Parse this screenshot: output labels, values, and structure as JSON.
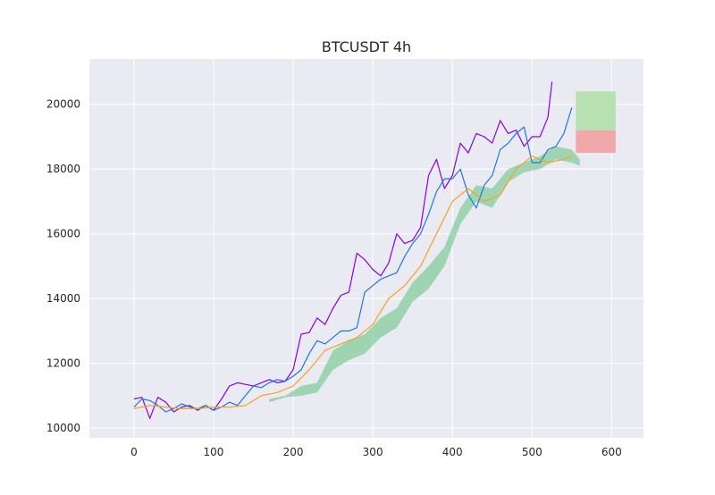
{
  "chart_data": {
    "type": "line",
    "title": "BTCUSDT 4h",
    "xlabel": "",
    "ylabel": "",
    "xlim": [
      -56,
      640
    ],
    "ylim": [
      9700,
      21400
    ],
    "xticks": [
      0,
      100,
      200,
      300,
      400,
      500,
      600
    ],
    "yticks": [
      10000,
      12000,
      14000,
      16000,
      18000,
      20000
    ],
    "grid": true,
    "style": "seaborn-darkgrid",
    "colors": {
      "background": "#eaeaf2",
      "grid": "#ffffff",
      "cloud_bull": "#7ecb96",
      "cloud_bear": "#ee9aa4",
      "candle_up": "#1a8a2a",
      "candle_down": "#cc1f1f",
      "forecast_box_green": "#b7e1b1",
      "forecast_box_red": "#f1a8aa"
    },
    "series": [
      {
        "role": "lagging",
        "color": "#8a00e6",
        "x": [
          0,
          10,
          20,
          30,
          40,
          50,
          60,
          70,
          80,
          90,
          100,
          110,
          120,
          130,
          140,
          150,
          160,
          170,
          180,
          190,
          200,
          210,
          220,
          230,
          240,
          250,
          260,
          270,
          280,
          290,
          300,
          310,
          320,
          330,
          340,
          350,
          360,
          370,
          380,
          390,
          400,
          410,
          420,
          430,
          440,
          450,
          460,
          470,
          480,
          490,
          500,
          510,
          520,
          525
        ],
        "values": [
          10900,
          10950,
          10300,
          10950,
          10800,
          10500,
          10650,
          10700,
          10550,
          10700,
          10550,
          10900,
          11300,
          11400,
          11350,
          11300,
          11400,
          11500,
          11400,
          11450,
          11800,
          12900,
          12950,
          13400,
          13200,
          13700,
          14100,
          14200,
          15400,
          15200,
          14900,
          14700,
          15100,
          16000,
          15700,
          15800,
          16200,
          17800,
          18300,
          17400,
          17800,
          18800,
          18500,
          19100,
          19000,
          18800,
          19500,
          19100,
          19200,
          18700,
          19000,
          19000,
          19600,
          20700
        ]
      },
      {
        "role": "price",
        "color": "#1f77e0",
        "x": [
          0,
          10,
          20,
          30,
          40,
          50,
          60,
          70,
          80,
          90,
          100,
          110,
          120,
          130,
          140,
          150,
          160,
          170,
          180,
          190,
          200,
          210,
          220,
          230,
          240,
          250,
          260,
          270,
          280,
          290,
          300,
          310,
          320,
          330,
          340,
          350,
          360,
          370,
          380,
          390,
          400,
          410,
          420,
          430,
          440,
          450,
          460,
          470,
          480,
          490,
          500,
          510,
          520,
          530,
          540,
          550
        ],
        "values": [
          10650,
          10900,
          10850,
          10700,
          10500,
          10600,
          10750,
          10650,
          10600,
          10700,
          10550,
          10650,
          10800,
          10700,
          11000,
          11300,
          11250,
          11400,
          11500,
          11450,
          11600,
          11800,
          12300,
          12700,
          12600,
          12800,
          13000,
          13000,
          13100,
          14200,
          14400,
          14600,
          14700,
          14800,
          15300,
          15700,
          16000,
          16600,
          17300,
          17700,
          17700,
          18000,
          17200,
          16800,
          17500,
          17800,
          18600,
          18800,
          19100,
          19300,
          18200,
          18200,
          18600,
          18700,
          19100,
          19900
        ]
      },
      {
        "role": "base",
        "color": "#f7a21b",
        "x": [
          0,
          20,
          40,
          60,
          80,
          100,
          120,
          140,
          160,
          180,
          200,
          220,
          240,
          260,
          280,
          300,
          320,
          340,
          360,
          380,
          400,
          420,
          440,
          460,
          480,
          500,
          520,
          540,
          550
        ],
        "values": [
          10600,
          10700,
          10650,
          10600,
          10600,
          10650,
          10650,
          10700,
          11000,
          11100,
          11300,
          11800,
          12400,
          12600,
          12800,
          13200,
          14000,
          14400,
          15000,
          16000,
          17000,
          17400,
          17000,
          17200,
          18000,
          18400,
          18200,
          18300,
          18400
        ]
      },
      {
        "role": "cloud_span_a",
        "color": "#7ecb96",
        "x": [
          170,
          190,
          210,
          230,
          250,
          270,
          290,
          310,
          330,
          350,
          370,
          390,
          410,
          430,
          450,
          470,
          490,
          510,
          530,
          550,
          560
        ],
        "values": [
          10900,
          11000,
          11300,
          11400,
          12400,
          12700,
          12900,
          13400,
          13700,
          14500,
          15000,
          15600,
          16800,
          17500,
          17400,
          18000,
          18200,
          18400,
          18700,
          18600,
          18300
        ]
      },
      {
        "role": "cloud_span_b",
        "color": "#7ecb96",
        "x": [
          170,
          190,
          210,
          230,
          250,
          270,
          290,
          310,
          330,
          350,
          370,
          390,
          410,
          430,
          450,
          470,
          490,
          510,
          530,
          550,
          560
        ],
        "values": [
          10800,
          10950,
          11000,
          11100,
          11800,
          12100,
          12300,
          12800,
          13100,
          13900,
          14300,
          15000,
          16300,
          17000,
          16800,
          17600,
          17900,
          18000,
          18300,
          18200,
          18100
        ]
      }
    ],
    "forecast_boxes": [
      {
        "color": "#b7e1b1",
        "x": [
          555,
          605
        ],
        "y": [
          19200,
          20400
        ]
      },
      {
        "color": "#f1a8aa",
        "x": [
          555,
          605
        ],
        "y": [
          18500,
          19200
        ]
      }
    ]
  }
}
